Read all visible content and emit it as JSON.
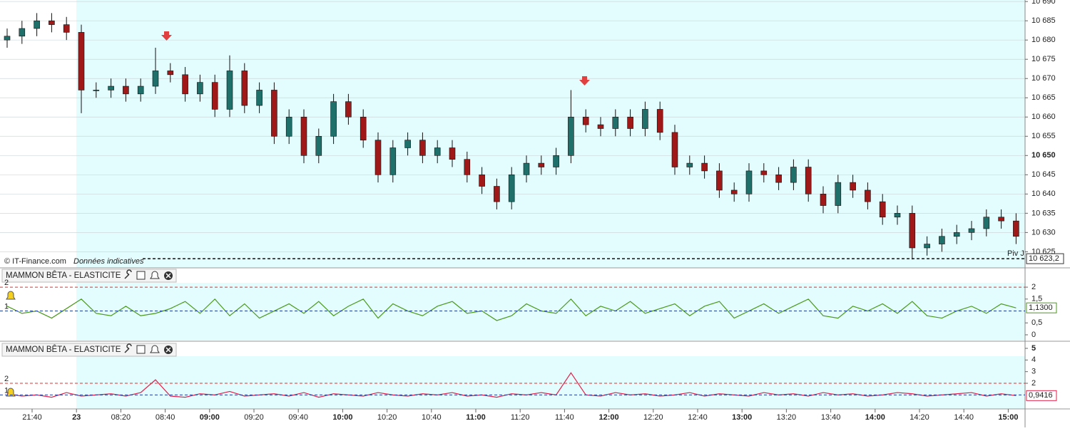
{
  "chart_data": [
    {
      "type": "candlestick",
      "colors": {
        "up": "#1f6f6a",
        "down": "#a01818"
      },
      "ylim": [
        10621,
        10690.4
      ],
      "yticks": [
        {
          "value": 10625,
          "label": "10 625"
        },
        {
          "value": 10630,
          "label": "10 630"
        },
        {
          "value": 10635,
          "label": "10 635"
        },
        {
          "value": 10640,
          "label": "10 640"
        },
        {
          "value": 10645,
          "label": "10 645"
        },
        {
          "value": 10650,
          "label": "10 650"
        },
        {
          "value": 10655,
          "label": "10 655"
        },
        {
          "value": 10660,
          "label": "10 660"
        },
        {
          "value": 10665,
          "label": "10 665"
        },
        {
          "value": 10670,
          "label": "10 670"
        },
        {
          "value": 10675,
          "label": "10 675"
        },
        {
          "value": 10680,
          "label": "10 680"
        },
        {
          "value": 10685,
          "label": "10 685"
        },
        {
          "value": 10690,
          "label": "10 690"
        }
      ],
      "pivot": {
        "name": "Piv J",
        "value": 10623.2,
        "label": "10 623,2"
      },
      "open": [
        10680,
        10681,
        10683,
        10685,
        10684,
        10682,
        10667,
        10667,
        10668,
        10666,
        10668,
        10672,
        10671,
        10666,
        10669,
        10662,
        10672,
        10663,
        10667,
        10655,
        10660,
        10650,
        10655,
        10664,
        10660,
        10654,
        10645,
        10652,
        10654,
        10650,
        10652,
        10649,
        10645,
        10642,
        10638,
        10645,
        10648,
        10647,
        10650,
        10660,
        10658,
        10657,
        10660,
        10657,
        10662,
        10656,
        10647,
        10648,
        10646,
        10641,
        10640,
        10646,
        10645,
        10643,
        10647,
        10640,
        10637,
        10643,
        10641,
        10638,
        10634,
        10635,
        10626,
        10627,
        10629,
        10630,
        10631,
        10634,
        10633
      ],
      "high": [
        10683,
        10685,
        10687,
        10687,
        10686,
        10684,
        10669,
        10670,
        10670,
        10670,
        10678,
        10674,
        10673,
        10671,
        10671,
        10676,
        10674,
        10669,
        10669,
        10662,
        10662,
        10657,
        10666,
        10666,
        10662,
        10656,
        10654,
        10656,
        10656,
        10654,
        10654,
        10651,
        10647,
        10644,
        10647,
        10650,
        10650,
        10652,
        10667,
        10662,
        10660,
        10662,
        10662,
        10664,
        10664,
        10658,
        10650,
        10650,
        10648,
        10643,
        10648,
        10648,
        10647,
        10649,
        10649,
        10642,
        10645,
        10645,
        10643,
        10640,
        10637,
        10637,
        10629,
        10631,
        10632,
        10633,
        10636,
        10636,
        10635
      ],
      "low": [
        10678,
        10679,
        10681,
        10682,
        10680,
        10661,
        10665,
        10665,
        10664,
        10664,
        10666,
        10669,
        10664,
        10664,
        10660,
        10660,
        10661,
        10661,
        10653,
        10653,
        10648,
        10648,
        10653,
        10658,
        10652,
        10643,
        10643,
        10650,
        10648,
        10648,
        10647,
        10643,
        10640,
        10636,
        10636,
        10643,
        10645,
        10645,
        10648,
        10656,
        10655,
        10655,
        10655,
        10655,
        10654,
        10645,
        10645,
        10644,
        10639,
        10638,
        10638,
        10643,
        10641,
        10641,
        10638,
        10635,
        10635,
        10639,
        10636,
        10632,
        10632,
        10623,
        10624,
        10625,
        10627,
        10628,
        10629,
        10631,
        10627
      ],
      "close": [
        10681,
        10683,
        10685,
        10684,
        10682,
        10667,
        10667,
        10668,
        10666,
        10668,
        10672,
        10671,
        10666,
        10669,
        10662,
        10672,
        10663,
        10667,
        10655,
        10660,
        10650,
        10655,
        10664,
        10660,
        10654,
        10645,
        10652,
        10654,
        10650,
        10652,
        10649,
        10645,
        10642,
        10638,
        10645,
        10648,
        10647,
        10650,
        10660,
        10658,
        10657,
        10660,
        10657,
        10662,
        10656,
        10647,
        10648,
        10646,
        10641,
        10640,
        10646,
        10645,
        10643,
        10647,
        10640,
        10637,
        10643,
        10641,
        10638,
        10634,
        10635,
        10626,
        10627,
        10629,
        10630,
        10631,
        10634,
        10633,
        10629
      ]
    },
    {
      "type": "line",
      "title": "MAMMON BÊTA - ELASTICITE",
      "color": "#4a9a1a",
      "ylim": [
        -0.24,
        2.75
      ],
      "yticks": [
        0,
        {
          "value": 0.5,
          "label": "0,5"
        },
        {
          "value": 1.5,
          "label": "1,5"
        },
        2
      ],
      "levels": [
        {
          "value": 2,
          "color": "#e03030"
        },
        {
          "value": 1,
          "color": "#2040a0"
        }
      ],
      "last_value_label": "1,1300",
      "values": [
        1.2,
        0.9,
        1.0,
        0.7,
        1.1,
        1.5,
        0.9,
        0.8,
        1.2,
        0.8,
        0.9,
        1.1,
        1.4,
        0.9,
        1.5,
        0.8,
        1.3,
        0.7,
        1.0,
        1.3,
        0.9,
        1.4,
        0.8,
        1.2,
        1.5,
        0.7,
        1.3,
        1.0,
        0.8,
        1.2,
        1.4,
        0.9,
        1.0,
        0.6,
        0.8,
        1.3,
        1.0,
        0.9,
        1.5,
        0.8,
        1.2,
        1.0,
        1.4,
        0.9,
        1.1,
        1.3,
        0.8,
        1.2,
        1.4,
        0.7,
        1.0,
        1.3,
        0.9,
        1.2,
        1.5,
        0.8,
        0.7,
        1.2,
        1.0,
        1.3,
        0.9,
        1.4,
        0.8,
        0.7,
        1.0,
        1.2,
        0.9,
        1.3,
        1.13
      ]
    },
    {
      "type": "line",
      "title": "MAMMON BÊTA - ELASTICITE",
      "color": "#e0204a",
      "ylim": [
        -0.08,
        5.49
      ],
      "yticks": [
        2,
        3,
        4,
        5
      ],
      "levels": [
        {
          "value": 2,
          "color": "#e03030"
        },
        {
          "value": 1,
          "color": "#2040a0"
        }
      ],
      "last_value_label": "0,9416",
      "values": [
        1.1,
        0.9,
        1.0,
        0.8,
        1.2,
        0.9,
        1.0,
        1.1,
        0.9,
        1.2,
        2.3,
        0.9,
        0.8,
        1.1,
        1.0,
        1.3,
        0.9,
        1.0,
        1.1,
        0.9,
        1.2,
        0.8,
        1.1,
        1.0,
        0.9,
        1.2,
        1.0,
        0.9,
        1.1,
        1.0,
        1.2,
        0.9,
        1.0,
        0.8,
        1.1,
        1.0,
        1.2,
        1.0,
        2.9,
        1.0,
        0.9,
        1.2,
        1.0,
        1.1,
        0.9,
        1.0,
        1.2,
        0.9,
        1.1,
        1.0,
        0.9,
        1.2,
        1.0,
        1.1,
        0.9,
        1.2,
        1.0,
        1.1,
        0.9,
        1.0,
        1.2,
        1.1,
        0.9,
        1.0,
        1.1,
        1.2,
        0.9,
        1.1,
        0.9416
      ]
    }
  ],
  "time_axis": [
    "21:40",
    "23",
    "08:20",
    "08:40",
    "09:00",
    "09:20",
    "09:40",
    "10:00",
    "10:20",
    "10:40",
    "11:00",
    "11:20",
    "11:40",
    "12:00",
    "12:20",
    "12:40",
    "13:00",
    "13:20",
    "13:40",
    "14:00",
    "14:20",
    "14:40",
    "15:00"
  ],
  "copyright": "© IT-Finance.com",
  "disclaimer": "Données indicatives"
}
